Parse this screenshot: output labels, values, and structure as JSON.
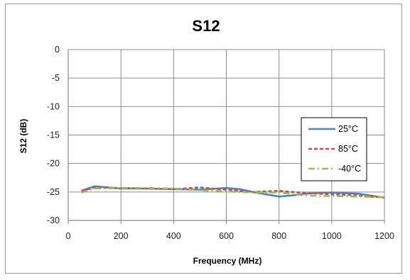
{
  "chart_data": {
    "type": "line",
    "title": "S12",
    "xlabel": "Frequency (MHz)",
    "ylabel": "S12 (dB)",
    "xlim": [
      0,
      1200
    ],
    "ylim": [
      -30,
      0
    ],
    "xticks": [
      0,
      200,
      400,
      600,
      800,
      1000,
      1200
    ],
    "yticks": [
      0,
      -5,
      -10,
      -15,
      -20,
      -25,
      -30
    ],
    "grid": true,
    "legend": "right",
    "series": [
      {
        "name": "25°C",
        "color": "#4f81bd",
        "dash": "solid",
        "x": [
          50,
          100,
          200,
          300,
          400,
          500,
          600,
          650,
          700,
          800,
          850,
          900,
          1000,
          1100,
          1200
        ],
        "y": [
          -24.8,
          -24.0,
          -24.4,
          -24.4,
          -24.5,
          -24.6,
          -24.3,
          -24.5,
          -25.0,
          -25.8,
          -25.6,
          -25.3,
          -25.1,
          -25.3,
          -26.0
        ]
      },
      {
        "name": "85°C",
        "color": "#c0504d",
        "dash": "dash",
        "x": [
          50,
          100,
          200,
          300,
          400,
          500,
          600,
          700,
          800,
          900,
          1000,
          1100,
          1200
        ],
        "y": [
          -24.8,
          -24.2,
          -24.3,
          -24.4,
          -24.5,
          -24.2,
          -24.6,
          -25.0,
          -24.8,
          -25.2,
          -25.4,
          -25.6,
          -26.0
        ]
      },
      {
        "name": "-40°C",
        "color": "#9bbb59",
        "dash": "dashdot",
        "x": [
          50,
          100,
          200,
          300,
          400,
          500,
          600,
          700,
          800,
          900,
          950,
          1000,
          1100,
          1200
        ],
        "y": [
          -25.1,
          -24.4,
          -24.3,
          -24.3,
          -24.4,
          -24.7,
          -24.9,
          -25.1,
          -25.1,
          -25.6,
          -25.7,
          -25.7,
          -25.8,
          -25.9
        ]
      }
    ]
  }
}
